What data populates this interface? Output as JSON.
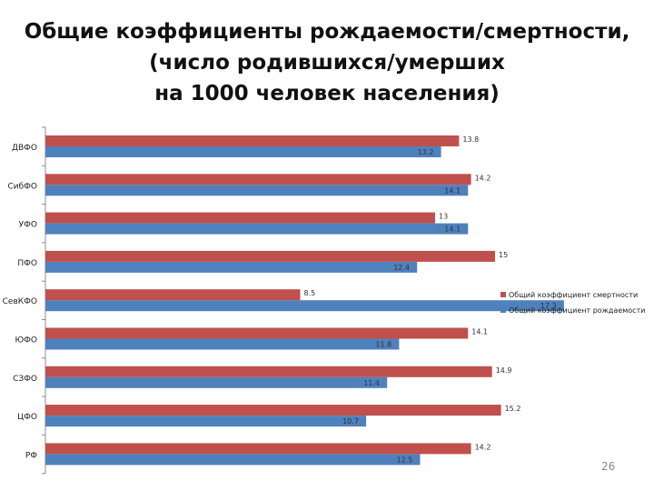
{
  "title_lines": [
    "Общие коэффициенты рождаемости/смертности,",
    "(число родившихся/умерших",
    "на 1000 человек населения)"
  ],
  "page_number": "26",
  "chart_data": {
    "type": "bar",
    "orientation": "horizontal",
    "categories": [
      "ДВФО",
      "СибФО",
      "УФО",
      "ПФО",
      "СевКФО",
      "ЮФО",
      "СЗФО",
      "ЦФО",
      "РФ"
    ],
    "series": [
      {
        "name": "Общий коэффициент смертности",
        "color": "#c0504d",
        "values": [
          13.8,
          14.2,
          13,
          15,
          8.5,
          14.1,
          14.9,
          15.2,
          14.2
        ],
        "labels": [
          "13.8",
          "14.2",
          "13",
          "15",
          "8.5",
          "14.1",
          "14.9",
          "15.2",
          "14.2"
        ]
      },
      {
        "name": "Общий коэффициент рождаемости",
        "color": "#4f81bd",
        "values": [
          13.2,
          14.1,
          14.1,
          12.4,
          17.3,
          11.8,
          11.4,
          10.7,
          12.5
        ],
        "labels": [
          "13.2",
          "14.1",
          "14.1",
          "12.4",
          "17.3",
          "11.8",
          "11.4",
          "10.7",
          "12.5"
        ]
      }
    ],
    "legend_position": "right",
    "grid": false
  }
}
